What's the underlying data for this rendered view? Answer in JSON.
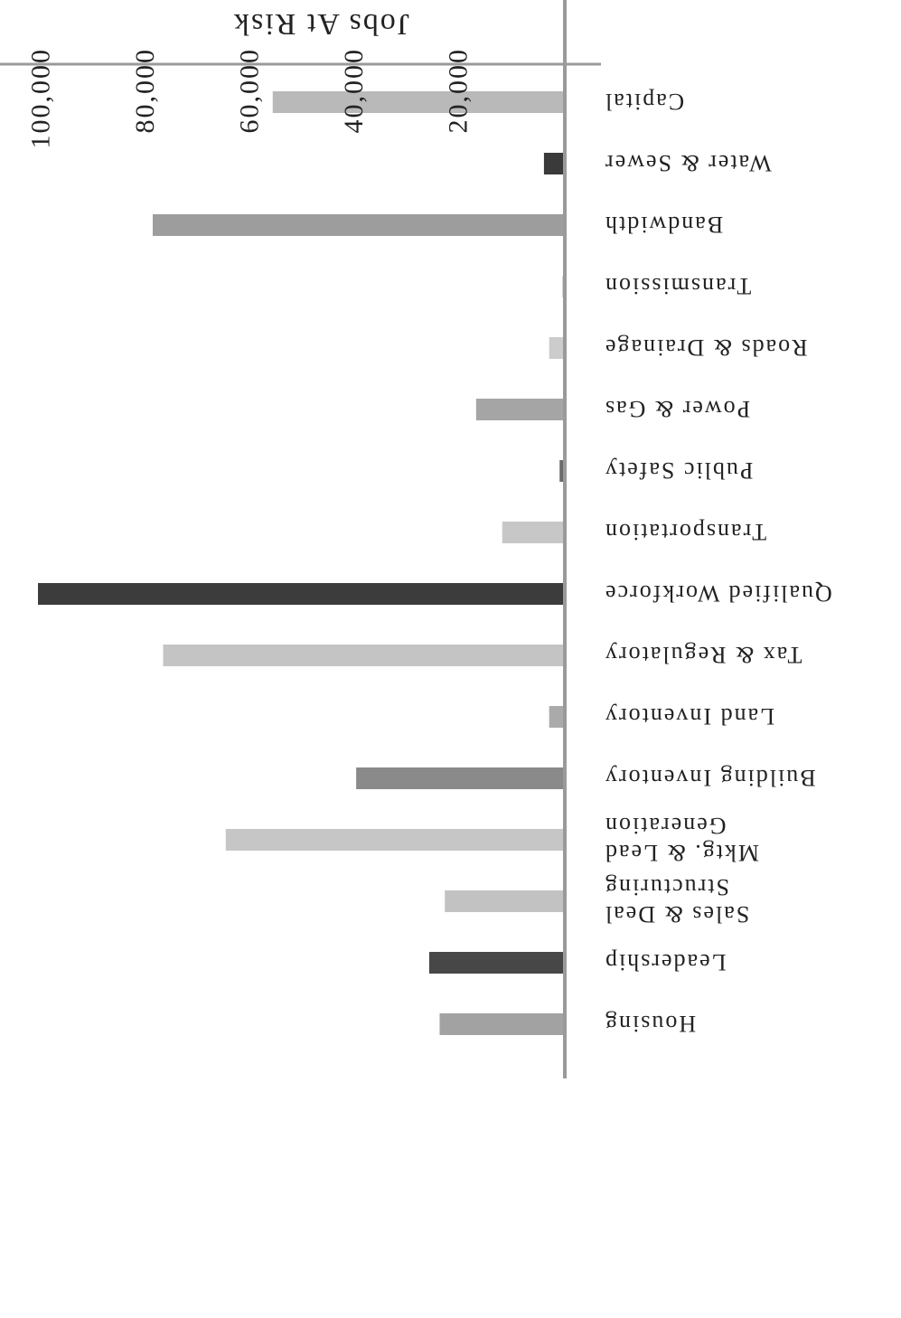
{
  "chart_data": {
    "type": "bar",
    "orientation": "horizontal",
    "rendering": "rotated 180 degrees",
    "ylabel": "Jobs At Risk",
    "xlabel": "",
    "title": "",
    "ylim": [
      0,
      107000
    ],
    "ticks": [
      20000,
      40000,
      60000,
      80000,
      100000
    ],
    "tick_labels": [
      "20,000",
      "40,000",
      "60,000",
      "80,000",
      "100,000"
    ],
    "grid": false,
    "categories": [
      "Capital",
      "Water & Sewer",
      "Bandwidth",
      "Transmission",
      "Roads & Drainage",
      "Power & Gas",
      "Public Safety",
      "Transportation",
      "Qualified Workforce",
      "Tax & Regulatory",
      "Land Inventory",
      "Building Inventory",
      "Mktg. & Lead Generation",
      "Sales & Deal Structuring",
      "Leadership",
      "Housing"
    ],
    "values": [
      56000,
      4000,
      79000,
      500,
      3000,
      17000,
      1000,
      12000,
      101000,
      77000,
      3000,
      40000,
      65000,
      23000,
      26000,
      24000
    ],
    "colors": [
      "#b9b9b9",
      "#3a3a3a",
      "#9d9d9d",
      "#d0d0d0",
      "#cccccc",
      "#a5a5a5",
      "#6a6a6a",
      "#c7c7c7",
      "#3c3c3c",
      "#c4c4c4",
      "#aaaaaa",
      "#8a8a8a",
      "#c6c6c6",
      "#c2c2c2",
      "#474747",
      "#a2a2a2"
    ]
  }
}
